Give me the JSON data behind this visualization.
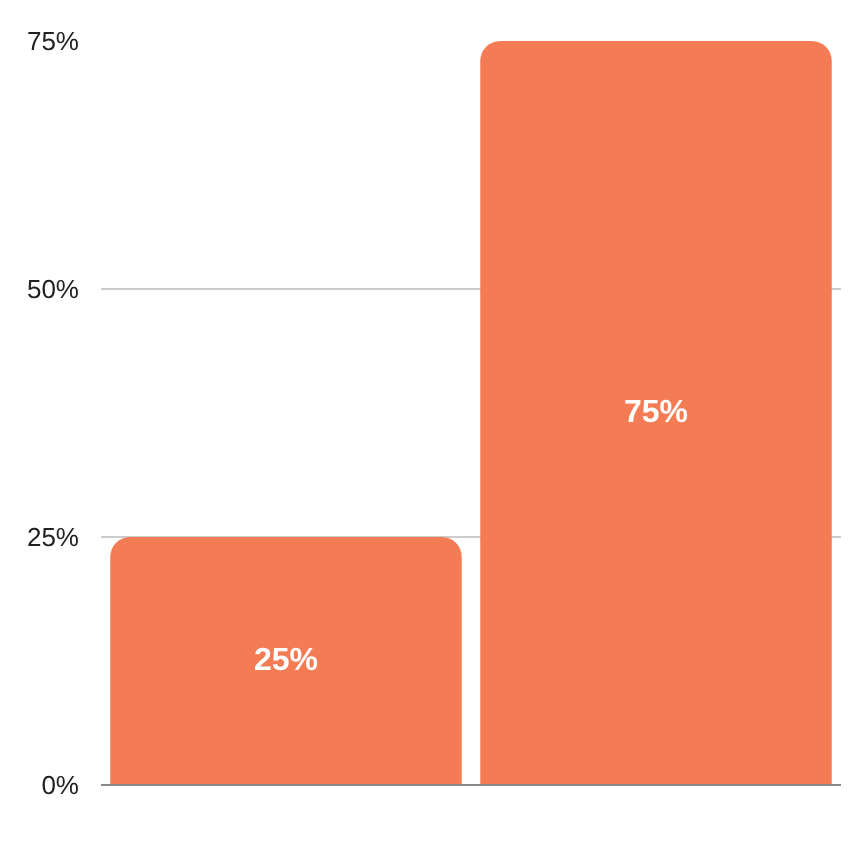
{
  "chart_data": {
    "type": "bar",
    "categories": [
      null,
      null
    ],
    "values": [
      25,
      75
    ],
    "color": "#f47c55",
    "value_labels": [
      "25%",
      "75%"
    ],
    "ylim": [
      0,
      75
    ],
    "yticks": [
      {
        "value": 0,
        "label": "0%"
      },
      {
        "value": 25,
        "label": "25%"
      },
      {
        "value": 50,
        "label": "50%"
      },
      {
        "value": 75,
        "label": "75%"
      }
    ],
    "grid": "y"
  }
}
